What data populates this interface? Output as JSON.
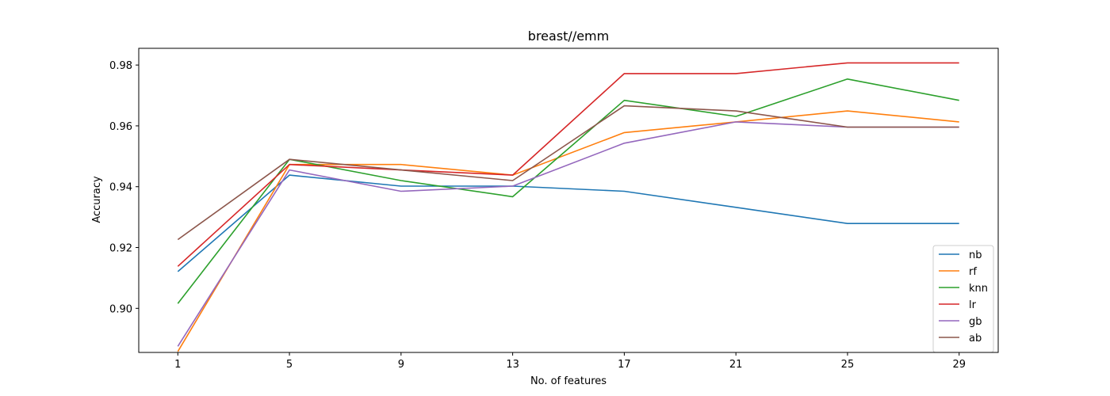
{
  "chart_data": {
    "type": "line",
    "title": "breast//emm",
    "xlabel": "No. of features",
    "ylabel": "Accuracy",
    "x": [
      1,
      5,
      9,
      13,
      17,
      21,
      25,
      29
    ],
    "x_tick_labels": [
      "1",
      "5",
      "9",
      "13",
      "17",
      "21",
      "25",
      "29"
    ],
    "ylim": [
      0.8855,
      0.9855
    ],
    "y_ticks": [
      0.9,
      0.92,
      0.94,
      0.96,
      0.98
    ],
    "y_tick_labels": [
      "0.90",
      "0.92",
      "0.94",
      "0.96",
      "0.98"
    ],
    "grid": false,
    "legend_position": "bottom-right",
    "series": [
      {
        "name": "nb",
        "color": "#1f77b4",
        "values": [
          0.9121,
          0.9438,
          0.9402,
          0.9402,
          0.9385,
          0.9332,
          0.9279,
          0.9279
        ]
      },
      {
        "name": "rf",
        "color": "#ff7f0e",
        "values": [
          0.8858,
          0.9473,
          0.9473,
          0.9438,
          0.9578,
          0.9613,
          0.9649,
          0.9613
        ]
      },
      {
        "name": "knn",
        "color": "#2ca02c",
        "values": [
          0.9016,
          0.949,
          0.942,
          0.9367,
          0.9684,
          0.9631,
          0.9754,
          0.9684
        ]
      },
      {
        "name": "lr",
        "color": "#d62728",
        "values": [
          0.9138,
          0.9473,
          0.9455,
          0.9438,
          0.9772,
          0.9772,
          0.9807,
          0.9807
        ]
      },
      {
        "name": "gb",
        "color": "#9467bd",
        "values": [
          0.8875,
          0.9455,
          0.9385,
          0.9402,
          0.9543,
          0.9613,
          0.9596,
          0.9596
        ]
      },
      {
        "name": "ab",
        "color": "#8c564b",
        "values": [
          0.9226,
          0.949,
          0.9455,
          0.942,
          0.9666,
          0.9649,
          0.9596,
          0.9596
        ]
      }
    ]
  }
}
